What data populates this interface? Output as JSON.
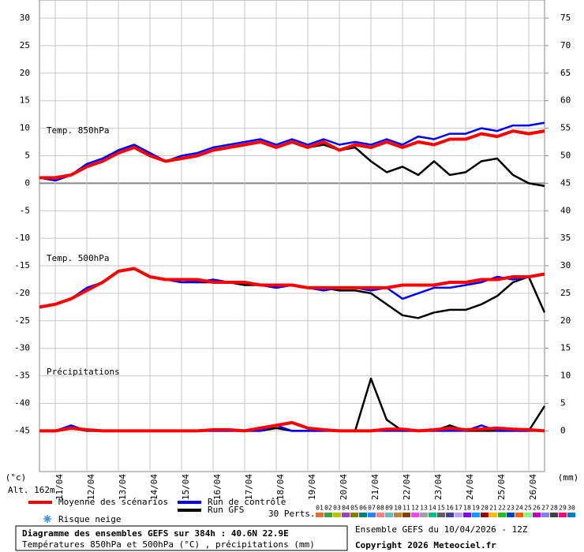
{
  "chart_data": {
    "type": "line",
    "x": [
      0,
      12,
      24,
      36,
      48,
      60,
      72,
      84,
      96,
      108,
      120,
      132,
      144,
      156,
      168,
      180,
      192,
      204,
      216,
      228,
      240,
      252,
      264,
      276,
      288,
      300,
      312,
      324,
      336,
      348,
      360,
      372,
      384
    ],
    "xlim": [
      0,
      384
    ],
    "xticks": [
      {
        "value": 12,
        "label": "11/04"
      },
      {
        "value": 36,
        "label": "12/04"
      },
      {
        "value": 60,
        "label": "13/04"
      },
      {
        "value": 84,
        "label": "14/04"
      },
      {
        "value": 108,
        "label": "15/04"
      },
      {
        "value": 132,
        "label": "16/04"
      },
      {
        "value": 156,
        "label": "17/04"
      },
      {
        "value": 180,
        "label": "18/04"
      },
      {
        "value": 204,
        "label": "19/04"
      },
      {
        "value": 228,
        "label": "20/04"
      },
      {
        "value": 252,
        "label": "21/04"
      },
      {
        "value": 276,
        "label": "22/04"
      },
      {
        "value": 300,
        "label": "23/04"
      },
      {
        "value": 324,
        "label": "24/04"
      },
      {
        "value": 348,
        "label": "25/04"
      },
      {
        "value": 372,
        "label": "26/04"
      }
    ],
    "ylim": [
      -52.4,
      33.3
    ],
    "yticks": [
      30,
      25,
      20,
      15,
      10,
      5,
      0,
      -5,
      -10,
      -15,
      -20,
      -25,
      -30,
      -35,
      -40,
      -45
    ],
    "y2lim": [
      -7.4,
      78.3
    ],
    "y2ticks": [
      75,
      70,
      65,
      60,
      55,
      50,
      45,
      40,
      35,
      30,
      25,
      20,
      15,
      10,
      5,
      0
    ],
    "grid": true,
    "ylabel": "(°c)",
    "y2label": "(mm)",
    "panel_labels": [
      "Temp. 850hPa",
      "Temp. 500hPa",
      "Précipitations"
    ],
    "altitude": "Alt. 162m",
    "series": [
      {
        "name": "Moyenne des scénarios",
        "color": "#ff0000",
        "values": [
          1,
          1,
          1.5,
          3,
          4,
          5.5,
          6.5,
          5,
          4,
          4.5,
          5,
          6,
          6.5,
          7,
          7.5,
          6.5,
          7.5,
          6.5,
          7.5,
          6,
          7,
          6.5,
          7.5,
          6.5,
          7.5,
          7,
          8,
          8,
          9,
          8.5,
          9.5,
          9,
          9.5
        ],
        "values_500": [
          -22.5,
          -22,
          -21,
          -19.5,
          -18,
          -16,
          -15.5,
          -17,
          -17.5,
          -17.5,
          -17.5,
          -18,
          -18,
          -18,
          -18.5,
          -18.5,
          -18.5,
          -19,
          -19,
          -19,
          -19,
          -19,
          -19,
          -18.5,
          -18.5,
          -18.5,
          -18,
          -18,
          -17.5,
          -17.5,
          -17,
          -17,
          -16.5
        ],
        "precip": [
          0,
          0,
          0.5,
          0.2,
          0,
          0,
          0,
          0,
          0,
          0,
          0,
          0.2,
          0.2,
          0,
          0.5,
          1,
          1.5,
          0.5,
          0.2,
          0,
          0,
          0,
          0.3,
          0.3,
          0,
          0.2,
          0.5,
          0.2,
          0.3,
          0.5,
          0.3,
          0.2,
          0
        ]
      },
      {
        "name": "Run de contrôle",
        "color": "#0000ff",
        "values": [
          1,
          0.5,
          1.5,
          3.5,
          4.5,
          6,
          7,
          5.5,
          4,
          5,
          5.5,
          6.5,
          7,
          7.5,
          8,
          7,
          8,
          7,
          8,
          7,
          7.5,
          7,
          8,
          7,
          8.5,
          8,
          9,
          9,
          10,
          9.5,
          10.5,
          10.5,
          11
        ],
        "values_500": [
          -22.5,
          -22,
          -21,
          -19,
          -18,
          -16,
          -15.5,
          -17,
          -17.5,
          -18,
          -18,
          -17.5,
          -18,
          -18,
          -18.5,
          -19,
          -18.5,
          -19,
          -19.5,
          -19,
          -19,
          -19.5,
          -19,
          -21,
          -20,
          -19,
          -19,
          -18.5,
          -18,
          -17,
          -17.5,
          -17,
          -16.5
        ],
        "precip": [
          0,
          0,
          1,
          0,
          0,
          0,
          0,
          0,
          0,
          0,
          0,
          0,
          0,
          0,
          0,
          1,
          0,
          0,
          0,
          0,
          0,
          0,
          0,
          0,
          0,
          0,
          0,
          0,
          1,
          0,
          0,
          0,
          0
        ]
      },
      {
        "name": "Run GFS",
        "color": "#000000",
        "values": [
          1,
          0.5,
          1.5,
          3,
          4,
          6,
          7,
          5,
          4,
          4.5,
          5,
          6,
          6.5,
          7,
          7.5,
          6.5,
          7.5,
          6.5,
          7,
          6,
          6.5,
          4,
          2,
          3,
          1.5,
          4,
          1.5,
          2,
          4,
          4.5,
          1.5,
          0,
          -0.5
        ],
        "values_500": [
          -22.5,
          -22,
          -21,
          -19.5,
          -18,
          -16,
          -15.5,
          -17,
          -17.5,
          -17.5,
          -18,
          -18,
          -18,
          -18.5,
          -18.5,
          -19,
          -18.5,
          -19,
          -19,
          -19.5,
          -19.5,
          -20,
          -22,
          -24,
          -24.5,
          -23.5,
          -23,
          -23,
          -22,
          -20.5,
          -18,
          -17,
          -23.5
        ],
        "precip": [
          0,
          0,
          0.5,
          0,
          0,
          0,
          0,
          0,
          0,
          0,
          0,
          0,
          0,
          0,
          0,
          0.5,
          0,
          0,
          0,
          0,
          0,
          9.5,
          2,
          0,
          0,
          0,
          1,
          0,
          0,
          0,
          0,
          0,
          4.5
        ]
      }
    ],
    "snow_label": "Risque neige",
    "perturbations_label": "30 Perts.",
    "perturbations": [
      {
        "label": "01",
        "color": "#e07030"
      },
      {
        "label": "02",
        "color": "#40a040"
      },
      {
        "label": "03",
        "color": "#c0c000"
      },
      {
        "label": "04",
        "color": "#a040c0"
      },
      {
        "label": "05",
        "color": "#808000"
      },
      {
        "label": "06",
        "color": "#008080"
      },
      {
        "label": "07",
        "color": "#3080ff"
      },
      {
        "label": "08",
        "color": "#ff8080"
      },
      {
        "label": "09",
        "color": "#60c0c0"
      },
      {
        "label": "10",
        "color": "#c08040"
      },
      {
        "label": "11",
        "color": "#804000"
      },
      {
        "label": "12",
        "color": "#ff40ff"
      },
      {
        "label": "13",
        "color": "#a0a0a0"
      },
      {
        "label": "14",
        "color": "#00c080"
      },
      {
        "label": "15",
        "color": "#606060"
      },
      {
        "label": "16",
        "color": "#4040a0"
      },
      {
        "label": "17",
        "color": "#c0a0ff"
      },
      {
        "label": "18",
        "color": "#8000ff"
      },
      {
        "label": "19",
        "color": "#00a0ff"
      },
      {
        "label": "20",
        "color": "#a00000"
      },
      {
        "label": "21",
        "color": "#ffc000"
      },
      {
        "label": "22",
        "color": "#20c020"
      },
      {
        "label": "23",
        "color": "#0040c0"
      },
      {
        "label": "24",
        "color": "#ff6000"
      },
      {
        "label": "25",
        "color": "#80ff80"
      },
      {
        "label": "26",
        "color": "#c000c0"
      },
      {
        "label": "27",
        "color": "#8080ff"
      },
      {
        "label": "28",
        "color": "#404040"
      },
      {
        "label": "29",
        "color": "#ff0080"
      },
      {
        "label": "30",
        "color": "#0080c0"
      }
    ],
    "footer_title": "Diagramme des ensembles GEFS sur 384h : 40.6N 22.9E",
    "footer_subtitle": "Températures 850hPa et 500hPa (°C) , précipitations (mm)",
    "run_info": "Ensemble GEFS du 10/04/2026 - 12Z",
    "copyright": "Copyright 2026 Meteociel.fr"
  }
}
